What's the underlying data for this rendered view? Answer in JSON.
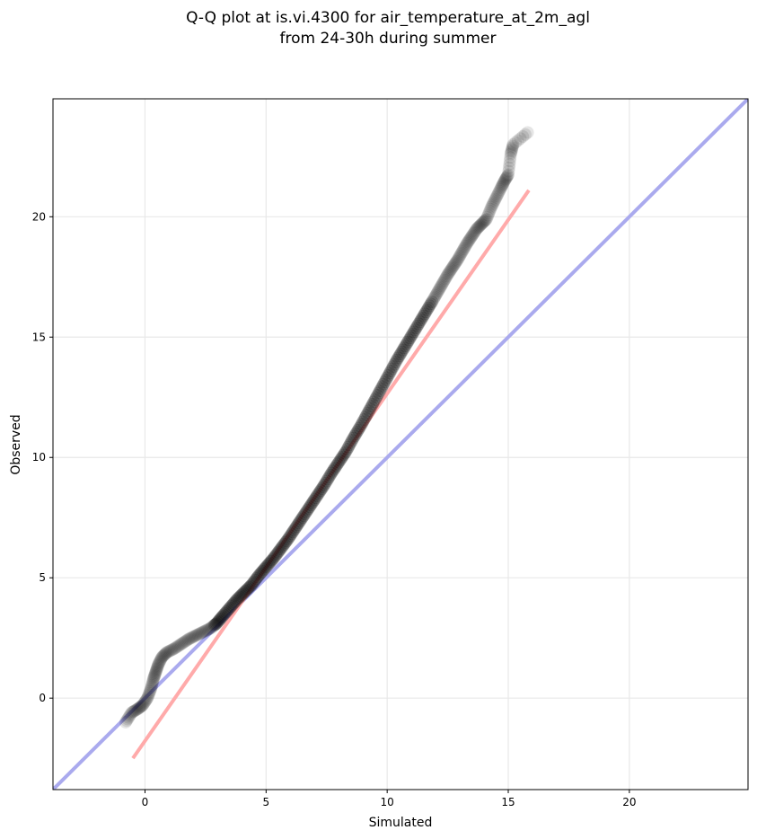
{
  "chart_data": {
    "type": "scatter",
    "title_lines": [
      "Q-Q plot at is.vi.4300 for air_temperature_at_2m_agl",
      "from 24-30h during summer"
    ],
    "xlabel": "Simulated",
    "ylabel": "Observed",
    "xlim": [
      -3.8,
      24.9
    ],
    "ylim": [
      -3.8,
      24.9
    ],
    "xticks": [
      0,
      5,
      10,
      15,
      20
    ],
    "yticks": [
      0,
      5,
      10,
      15,
      20
    ],
    "grid": true,
    "colors": {
      "points": "#000000",
      "identity_line": "#aaaaee",
      "fit_line": "#ffaaaa"
    },
    "reference_lines": [
      {
        "kind": "identity",
        "x": [
          -3.8,
          24.9
        ],
        "y": [
          -3.8,
          24.9
        ]
      },
      {
        "kind": "fit",
        "x": [
          -0.5,
          15.85
        ],
        "y": [
          -2.5,
          21.1
        ]
      }
    ],
    "quantiles": {
      "x": [
        -0.8,
        -0.55,
        -0.3,
        -0.1,
        0.1,
        0.25,
        0.35,
        0.45,
        0.55,
        0.7,
        0.9,
        1.2,
        1.5,
        1.8,
        2.1,
        2.4,
        2.7,
        2.95,
        3.2,
        3.5,
        3.8,
        4.1,
        4.4,
        4.7,
        5.0,
        5.3,
        5.6,
        5.9,
        6.2,
        6.5,
        6.8,
        7.1,
        7.4,
        7.7,
        8.0,
        8.3,
        8.6,
        8.9,
        9.2,
        9.5,
        9.8,
        10.1,
        10.4,
        10.7,
        11.0,
        11.3,
        11.6,
        11.9,
        12.1,
        12.3,
        12.5,
        12.7,
        12.9,
        13.1,
        13.3,
        13.5,
        13.7,
        13.9,
        14.1,
        14.3,
        14.5,
        14.7,
        14.85,
        15.0,
        15.1,
        15.2,
        15.8
      ],
      "y": [
        -1.0,
        -0.6,
        -0.45,
        -0.3,
        0.0,
        0.4,
        0.8,
        1.1,
        1.4,
        1.7,
        1.9,
        2.05,
        2.25,
        2.45,
        2.6,
        2.75,
        2.9,
        3.1,
        3.4,
        3.75,
        4.1,
        4.4,
        4.7,
        5.1,
        5.45,
        5.8,
        6.2,
        6.6,
        7.05,
        7.5,
        7.95,
        8.4,
        8.85,
        9.35,
        9.8,
        10.25,
        10.8,
        11.3,
        11.85,
        12.4,
        12.95,
        13.5,
        14.05,
        14.55,
        15.05,
        15.55,
        16.05,
        16.55,
        16.9,
        17.25,
        17.6,
        17.9,
        18.2,
        18.55,
        18.9,
        19.2,
        19.5,
        19.7,
        19.9,
        20.4,
        20.8,
        21.2,
        21.5,
        21.75,
        22.6,
        23.0,
        23.5
      ]
    }
  }
}
